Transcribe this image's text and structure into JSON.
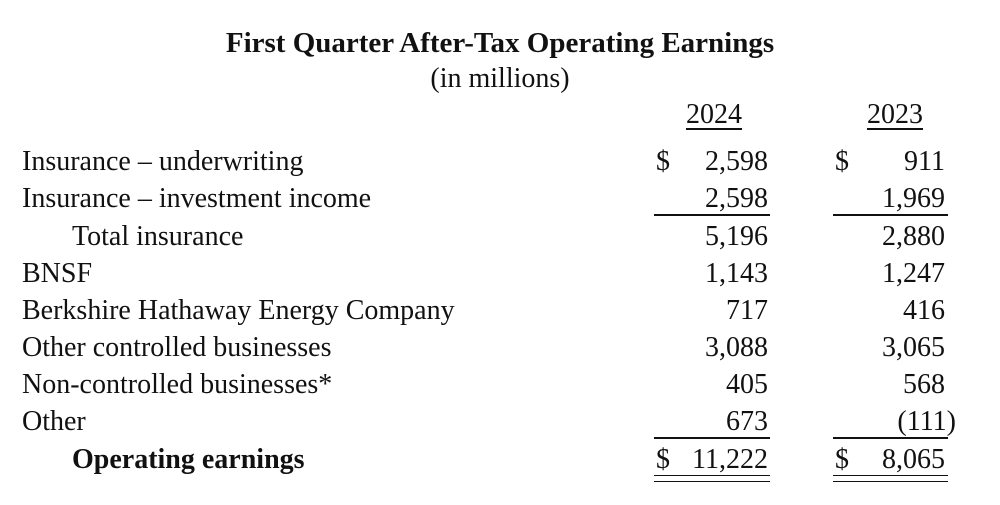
{
  "title": "First Quarter After-Tax Operating Earnings",
  "subtitle": "(in millions)",
  "columns": [
    "2024",
    "2023"
  ],
  "currency_symbol": "$",
  "rows": [
    {
      "label": "Insurance – underwriting",
      "v2024": "2,598",
      "v2023": "911"
    },
    {
      "label": "Insurance – investment income",
      "v2024": "2,598",
      "v2023": "1,969"
    },
    {
      "label": "Total insurance",
      "v2024": "5,196",
      "v2023": "2,880"
    },
    {
      "label": "BNSF",
      "v2024": "1,143",
      "v2023": "1,247"
    },
    {
      "label": "Berkshire Hathaway Energy Company",
      "v2024": "717",
      "v2023": "416"
    },
    {
      "label": "Other controlled businesses",
      "v2024": "3,088",
      "v2023": "3,065"
    },
    {
      "label": "Non-controlled businesses*",
      "v2024": "405",
      "v2023": "568"
    },
    {
      "label": "Other",
      "v2024": "673",
      "v2023": "(111)"
    },
    {
      "label": "Operating earnings",
      "v2024": "11,222",
      "v2023": "8,065"
    }
  ]
}
